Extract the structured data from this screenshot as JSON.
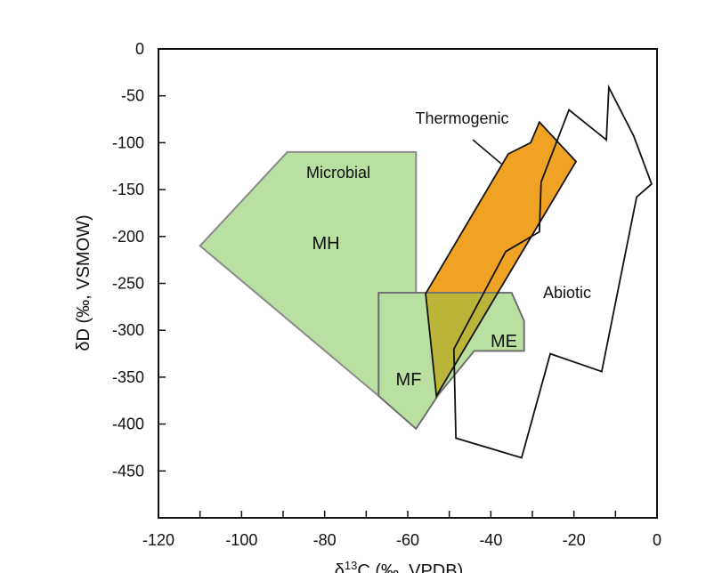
{
  "chart_data": {
    "type": "diagram",
    "xlabel": "δ13C (‰, VPDB)",
    "xlabel_main": "δ",
    "xlabel_sup": "13",
    "xlabel_rest": "C (‰, VPDB)",
    "ylabel": "δD (‰, VSMOW)",
    "xlim": [
      -120,
      0
    ],
    "ylim": [
      -500,
      0
    ],
    "x_ticks": [
      -120,
      -100,
      -80,
      -60,
      -40,
      -20,
      0
    ],
    "x_minor_step": 10,
    "y_ticks": [
      0,
      -50,
      -100,
      -150,
      -200,
      -250,
      -300,
      -350,
      -400,
      -450
    ],
    "colors": {
      "microbial": "#b9dfa1",
      "microbial_stroke": "#8a8a8a",
      "thermogenic": "#f0a224",
      "overlap": "#bab538",
      "abiotic_stroke": "#111111"
    },
    "regions": {
      "MH": [
        [
          -110,
          -210
        ],
        [
          -89,
          -110
        ],
        [
          -58,
          -110
        ],
        [
          -58,
          -260
        ],
        [
          -67,
          -260
        ],
        [
          -67,
          -370
        ]
      ],
      "MF_ME": [
        [
          -67,
          -260
        ],
        [
          -35,
          -260
        ],
        [
          -32,
          -290
        ],
        [
          -32,
          -322
        ],
        [
          -44,
          -322
        ],
        [
          -52.5,
          -368
        ],
        [
          -58,
          -405
        ],
        [
          -67,
          -370
        ]
      ],
      "Thermogenic": [
        [
          -55.7,
          -261
        ],
        [
          -35.8,
          -112
        ],
        [
          -30.4,
          -100
        ],
        [
          -28.3,
          -78
        ],
        [
          -19.5,
          -120
        ],
        [
          -53.1,
          -370
        ]
      ],
      "Abiotic": [
        [
          -48.9,
          -320
        ],
        [
          -48.4,
          -415
        ],
        [
          -32.6,
          -436
        ],
        [
          -25.7,
          -325
        ],
        [
          -13.3,
          -344
        ],
        [
          -4.9,
          -158
        ],
        [
          -1.3,
          -144
        ],
        [
          -5.6,
          -93
        ],
        [
          -11.6,
          -41
        ],
        [
          -12.2,
          -97
        ],
        [
          -21.2,
          -65
        ],
        [
          -27.9,
          -142
        ],
        [
          -28.3,
          -195
        ],
        [
          -36.4,
          -216
        ]
      ]
    },
    "labels": {
      "microbial": "Microbial",
      "mh": "MH",
      "mf": "MF",
      "me": "ME",
      "thermogenic": "Thermogenic",
      "abiotic": "Abiotic"
    }
  }
}
